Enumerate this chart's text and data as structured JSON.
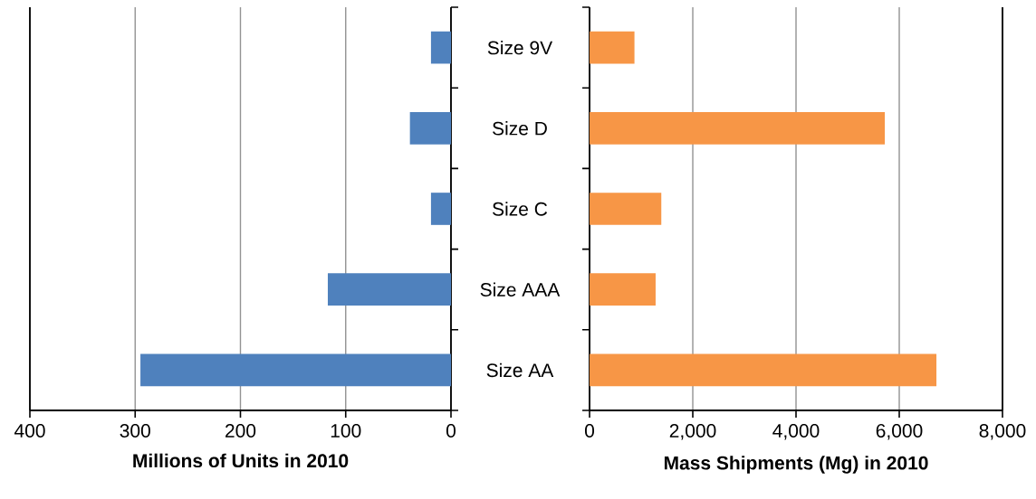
{
  "chart_data": [
    {
      "type": "bar",
      "orientation": "horizontal",
      "xlabel": "Millions of Units in 2010",
      "categories": [
        "Size 9V",
        "Size D",
        "Size C",
        "Size AAA",
        "Size AA"
      ],
      "values": [
        19,
        39,
        19,
        117,
        295
      ],
      "color": "#4f81bd",
      "xlim": [
        400,
        0
      ],
      "xticks": [
        400,
        300,
        200,
        100,
        0
      ],
      "grid": "x"
    },
    {
      "type": "bar",
      "orientation": "horizontal",
      "xlabel": "Mass Shipments (Mg) in 2010",
      "categories": [
        null,
        null,
        null,
        null,
        null
      ],
      "values": [
        870,
        5720,
        1390,
        1280,
        6720
      ],
      "color": "#f79646",
      "xlim": [
        0,
        8000
      ],
      "xticks": [
        {
          "value": 0,
          "label": "0"
        },
        {
          "value": 2000,
          "label": "2,000"
        },
        {
          "value": 4000,
          "label": "4,000"
        },
        {
          "value": 6000,
          "label": "6,000"
        },
        {
          "value": 8000,
          "label": "8,000"
        }
      ],
      "grid": "x",
      "tick_labels": "x"
    }
  ]
}
